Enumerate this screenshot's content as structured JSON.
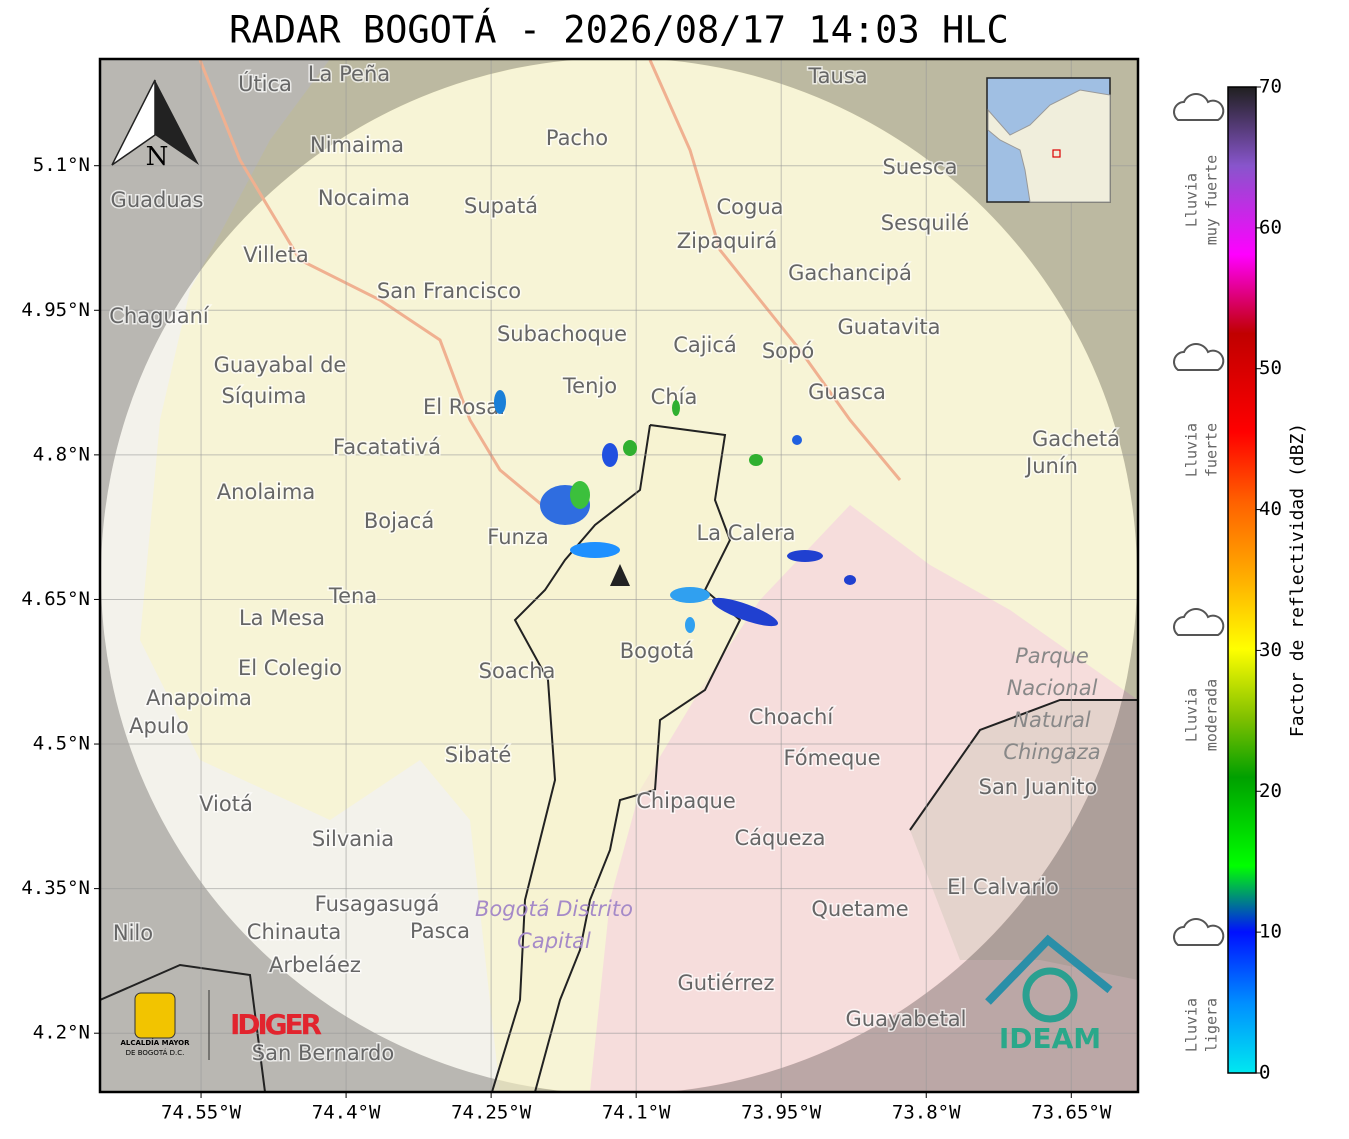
{
  "title": "RADAR BOGOTÁ - 2026/08/17 14:03 HLC",
  "map": {
    "xlim": [
      -74.6545,
      -73.581
    ],
    "ylim": [
      4.139,
      5.2107
    ],
    "xticks": [
      {
        "value": -74.55,
        "label": "74.55°W"
      },
      {
        "value": -74.4,
        "label": "74.4°W"
      },
      {
        "value": -74.25,
        "label": "74.25°W"
      },
      {
        "value": -74.1,
        "label": "74.1°W"
      },
      {
        "value": -73.95,
        "label": "73.95°W"
      },
      {
        "value": -73.8,
        "label": "73.8°W"
      },
      {
        "value": -73.65,
        "label": "73.65°W"
      }
    ],
    "yticks": [
      {
        "value": 4.2,
        "label": "4.2°N"
      },
      {
        "value": 4.35,
        "label": "4.35°N"
      },
      {
        "value": 4.5,
        "label": "4.5°N"
      },
      {
        "value": 4.65,
        "label": "4.65°N"
      },
      {
        "value": 4.8,
        "label": "4.8°N"
      },
      {
        "value": 4.95,
        "label": "4.95°N"
      },
      {
        "value": 5.1,
        "label": "5.1°N"
      }
    ],
    "places": [
      "La Peña",
      "Útica",
      "Tausa",
      "Pacho",
      "Nimaima",
      "Guaduas",
      "Nocaima",
      "Supatá",
      "Cogua",
      "Suesca",
      "Sesquilé",
      "Zipaquirá",
      "Villeta",
      "Gachancipá",
      "San Francisco",
      "Chaguaní",
      "Guatavita",
      "Subachoque",
      "Cajicá",
      "Sopó",
      "Guayabal de",
      "Síquima",
      "Tenjo",
      "Chía",
      "Guasca",
      "El Rosal",
      "Facatativá",
      "Gachetá",
      "Junín",
      "Anolaima",
      "Bojacá",
      "Funza",
      "La Calera",
      "Tena",
      "La Mesa",
      "Bogotá",
      "Soacha",
      "El Colegio",
      "Anapoima",
      "Apulo",
      "Choachí",
      "Sibaté",
      "Fómeque",
      "San Juanito",
      "Viotá",
      "Chipaque",
      "Cáqueza",
      "Silvania",
      "El Calvario",
      "Fusagasugá",
      "Quetame",
      "Nilo",
      "Chinauta",
      "Pasca",
      "Arbeláez",
      "Gutiérrez",
      "Guayabetal",
      "San Bernardo"
    ],
    "park": [
      "Parque",
      "Nacional",
      "Natural",
      "Chingaza"
    ],
    "district": [
      "Bogotá Distrito",
      "Capital"
    ],
    "north": "N"
  },
  "colorbar": {
    "label": "Factor de reflectividad (dBZ)",
    "lim": [
      0,
      70
    ],
    "ticks": [
      0,
      10,
      20,
      30,
      40,
      50,
      60,
      70
    ]
  },
  "legend": [
    [
      "Lluvia",
      "muy fuerte"
    ],
    [
      "Lluvia",
      "fuerte"
    ],
    [
      "Lluvia",
      "moderada"
    ],
    [
      "Lluvia",
      "ligera"
    ]
  ],
  "logos": {
    "alcaldia": [
      "ALCALDÍA MAYOR",
      "DE BOGOTÁ D.C."
    ],
    "idiger": "IDIGER",
    "ideam": "IDEAM"
  }
}
